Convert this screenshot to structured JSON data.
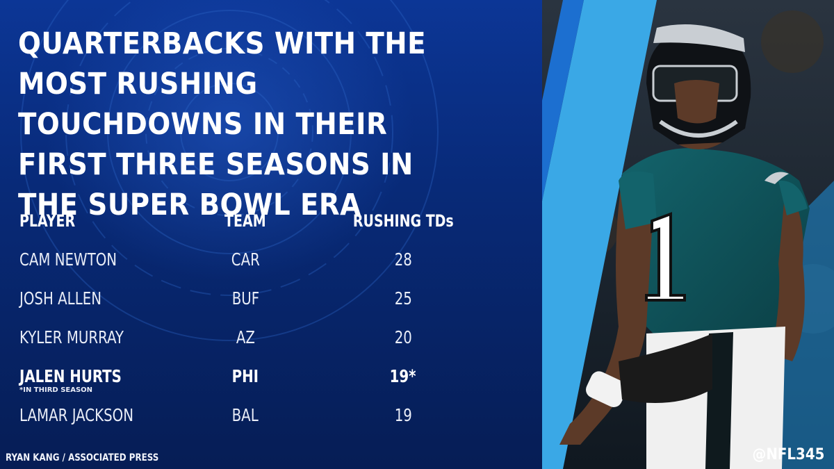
{
  "title": "QUARTERBACKS WITH THE MOST RUSHING TOUCHDOWNS IN THEIR FIRST THREE SEASONS IN THE SUPER BOWL ERA",
  "table": {
    "headers": {
      "player": "PLAYER",
      "team": "TEAM",
      "stat": "RUSHING TDs"
    },
    "rows": [
      {
        "player": "CAM NEWTON",
        "team": "CAR",
        "tds": "28"
      },
      {
        "player": "JOSH ALLEN",
        "team": "BUF",
        "tds": "25"
      },
      {
        "player": "KYLER MURRAY",
        "team": "AZ",
        "tds": "20"
      },
      {
        "player": "JALEN HURTS",
        "team": "PHI",
        "tds": "19*",
        "note": "*IN THIRD SEASON"
      },
      {
        "player": "LAMAR JACKSON",
        "team": "BAL",
        "tds": "19"
      }
    ]
  },
  "credit": "RYAN KANG / ASSOCIATED PRESS",
  "handle": "@NFL345",
  "colors": {
    "background": "#0a2a6e",
    "accent_stripe": "#3aa8e6",
    "jersey": "#0f4f56"
  },
  "photo_subject": "player-photo"
}
